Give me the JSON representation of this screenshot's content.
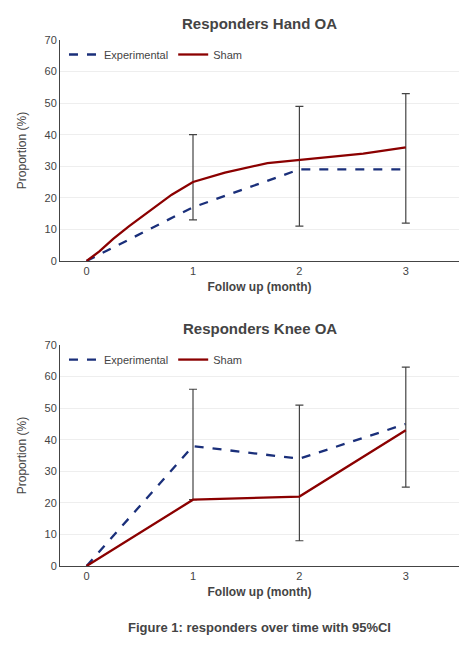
{
  "chart_data": [
    {
      "type": "line",
      "title": "Responders Hand OA",
      "xlabel": "Follow up (month)",
      "ylabel": "Proportion (%)",
      "series": [
        {
          "name": "Experimental",
          "color": "#1a2f7a",
          "line_style": "dashed",
          "x": [
            0,
            1,
            2,
            3
          ],
          "values": [
            0,
            17,
            29,
            29
          ],
          "ci_low": [
            null,
            13,
            11,
            12
          ],
          "ci_high": [
            null,
            40,
            49,
            53
          ]
        },
        {
          "name": "Sham",
          "color": "#8b0000",
          "line_style": "solid",
          "x": [
            0,
            0.12,
            0.25,
            0.4,
            0.6,
            0.8,
            1.0,
            1.3,
            1.7,
            2.0,
            2.3,
            2.6,
            3.0
          ],
          "values": [
            0,
            3,
            7,
            11,
            16,
            21,
            25,
            28,
            31,
            32,
            33,
            34,
            36
          ]
        }
      ],
      "xlim": [
        -0.25,
        3.5
      ],
      "xticks": [
        0,
        1,
        2,
        3
      ],
      "ylim": [
        0,
        70
      ],
      "yticks": [
        0,
        10,
        20,
        30,
        40,
        50,
        60,
        70
      ],
      "grid": true,
      "legend": "upper left"
    },
    {
      "type": "line",
      "title": "Responders Knee OA",
      "xlabel": "Follow up (month)",
      "ylabel": "Proportion (%)",
      "series": [
        {
          "name": "Experimental",
          "color": "#1a2f7a",
          "line_style": "dashed",
          "x": [
            0,
            1,
            2,
            3
          ],
          "values": [
            0,
            38,
            34,
            45
          ],
          "ci_low": [
            null,
            21,
            8,
            25
          ],
          "ci_high": [
            null,
            56,
            51,
            63
          ]
        },
        {
          "name": "Sham",
          "color": "#8b0000",
          "line_style": "solid",
          "x": [
            0,
            1,
            2,
            3
          ],
          "values": [
            0,
            21,
            22,
            43
          ]
        }
      ],
      "xlim": [
        -0.25,
        3.5
      ],
      "xticks": [
        0,
        1,
        2,
        3
      ],
      "ylim": [
        0,
        70
      ],
      "yticks": [
        0,
        10,
        20,
        30,
        40,
        50,
        60,
        70
      ],
      "grid": true,
      "legend": "upper left"
    }
  ],
  "caption": "Figure 1: responders over time with 95%CI"
}
